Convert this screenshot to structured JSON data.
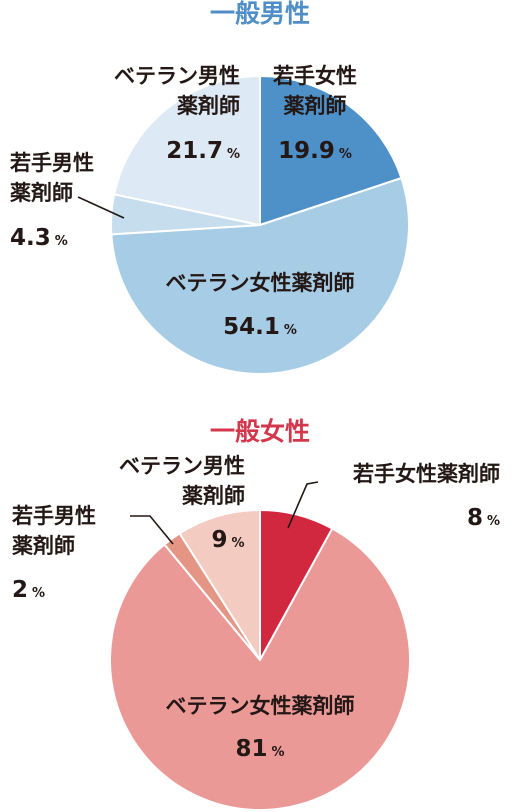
{
  "chart_data": [
    {
      "type": "pie",
      "title": "一般男性",
      "title_color": "#4f8ec6",
      "unit": "%",
      "slices": [
        {
          "label_line1": "若手女性",
          "label_line2": "薬剤師",
          "value": 19.9,
          "value_text": "19.9",
          "color": "#4e91c9"
        },
        {
          "label_line1": "ベテラン女性薬剤師",
          "label_line2": "",
          "value": 54.1,
          "value_text": "54.1",
          "color": "#a7cde6"
        },
        {
          "label_line1": "若手男性",
          "label_line2": "薬剤師",
          "value": 4.3,
          "value_text": "4.3",
          "color": "#c6ddee"
        },
        {
          "label_line1": "ベテラン男性",
          "label_line2": "薬剤師",
          "value": 21.7,
          "value_text": "21.7",
          "color": "#dde9f4"
        }
      ]
    },
    {
      "type": "pie",
      "title": "一般女性",
      "title_color": "#d3374c",
      "unit": "%",
      "slices": [
        {
          "label_line1": "若手女性薬剤師",
          "label_line2": "",
          "value": 8,
          "value_text": "8",
          "color": "#d1283f"
        },
        {
          "label_line1": "ベテラン女性薬剤師",
          "label_line2": "",
          "value": 81,
          "value_text": "81",
          "color": "#eb9997"
        },
        {
          "label_line1": "若手男性",
          "label_line2": "薬剤師",
          "value": 2,
          "value_text": "2",
          "color": "#e49584"
        },
        {
          "label_line1": "ベテラン男性",
          "label_line2": "薬剤師",
          "value": 9,
          "value_text": "9",
          "color": "#f4cbc1"
        }
      ]
    }
  ]
}
